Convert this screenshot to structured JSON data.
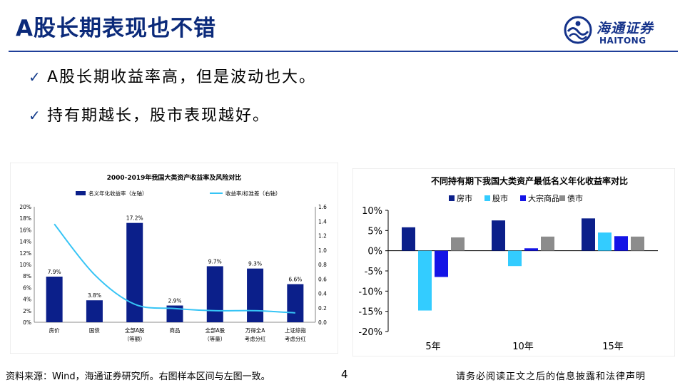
{
  "slide": {
    "title": "A股长期表现也不错",
    "bullets": [
      "A股长期收益率高，但是波动也大。",
      "持有期越长，股市表现越好。"
    ],
    "source_note": "资料来源：Wind，海通证券研究所。右图样本区间与左图一致。",
    "page_number": "4",
    "disclaimer": "请务必阅读正文之后的信息披露和法律声明"
  },
  "logo": {
    "name_cn": "海通证券",
    "name_en": "HAITONG"
  },
  "colors": {
    "navy": "#0b1f8a",
    "title": "#0b2a7a",
    "cyan": "#33ccff",
    "blue": "#1414e6",
    "gray": "#8c8c8c",
    "line": "#36c4f5"
  },
  "chart_data": [
    {
      "type": "bar",
      "title": "2000-2019年我国大类资产收益率及风险对比",
      "categories": [
        "房价",
        "国债",
        "全部A股\n（等额）",
        "商品",
        "全部A股\n（等量）",
        "万得全A\n考虑分红",
        "上证综指\n考虑分红"
      ],
      "series": [
        {
          "name": "名义年化收益率（左轴）",
          "type": "bar",
          "axis": "left",
          "values": [
            7.9,
            3.8,
            17.2,
            2.9,
            9.7,
            9.3,
            6.6
          ],
          "labels": [
            "7.9%",
            "3.8%",
            "17.2%",
            "2.9%",
            "9.7%",
            "9.3%",
            "6.6%"
          ]
        },
        {
          "name": "收益率/标准差（右轴）",
          "type": "line",
          "axis": "right",
          "values": [
            1.36,
            0.66,
            0.25,
            0.19,
            0.16,
            0.16,
            0.13
          ]
        }
      ],
      "y_left": {
        "ylim": [
          0,
          20
        ],
        "ticks": [
          "0%",
          "2%",
          "4%",
          "6%",
          "8%",
          "10%",
          "12%",
          "14%",
          "16%",
          "18%",
          "20%"
        ]
      },
      "y_right": {
        "ylim": [
          0,
          1.6
        ],
        "ticks": [
          "0.0",
          "0.2",
          "0.4",
          "0.6",
          "0.8",
          "1.0",
          "1.2",
          "1.4",
          "1.6"
        ]
      },
      "legend": "top"
    },
    {
      "type": "bar",
      "title": "不同持有期下我国大类资产最低名义年化收益率对比",
      "categories": [
        "5年",
        "10年",
        "15年"
      ],
      "series": [
        {
          "name": "房市",
          "values": [
            5.8,
            7.5,
            8.0
          ]
        },
        {
          "name": "股市",
          "values": [
            -14.8,
            -3.8,
            4.5
          ]
        },
        {
          "name": "大宗商品",
          "values": [
            -6.5,
            0.6,
            3.6
          ]
        },
        {
          "name": "债市",
          "values": [
            3.3,
            3.5,
            3.5
          ]
        }
      ],
      "ylim": [
        -20,
        10
      ],
      "ticks": [
        "10%",
        "5%",
        "0%",
        "-5%",
        "-10%",
        "-15%",
        "-20%"
      ],
      "legend": "top"
    }
  ]
}
